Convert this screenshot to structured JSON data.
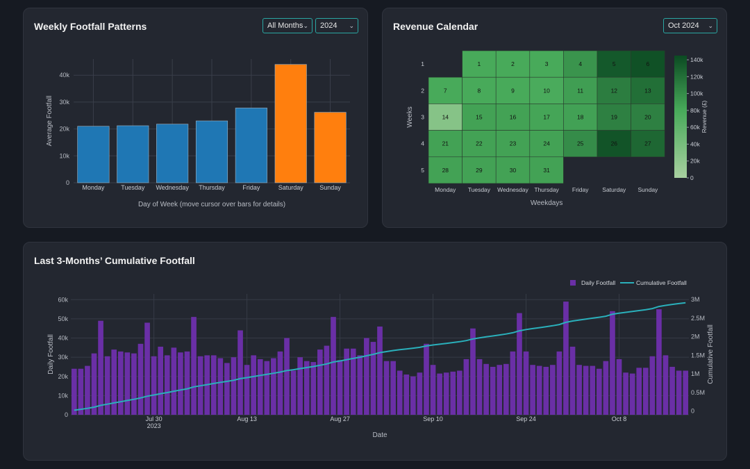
{
  "weekly": {
    "title": "Weekly Footfall Patterns",
    "month_select": "All Months",
    "year_select": "2024"
  },
  "calendar": {
    "title": "Revenue Calendar",
    "month_select": "Oct 2024"
  },
  "cumulative": {
    "title": "Last 3-Months’ Cumulative Footfall"
  },
  "icons": {
    "chevron": "chevron-down-icon"
  },
  "colors": {
    "weekday_bar": "#1f77b4",
    "weekend_bar": "#ff7f0e",
    "daily_bar": "#6a2fa6",
    "cumulative_line": "#2ab0bb",
    "select_border": "#2aa7a3",
    "heat_low": "#a8d0a0",
    "heat_high": "#0b4a22"
  },
  "chart_data": [
    {
      "type": "bar",
      "title": "Weekly Footfall Patterns",
      "categories": [
        "Monday",
        "Tuesday",
        "Wednesday",
        "Thursday",
        "Friday",
        "Saturday",
        "Sunday"
      ],
      "values": [
        21000,
        21200,
        21800,
        23000,
        27800,
        44000,
        26200
      ],
      "weekend": [
        false,
        false,
        false,
        false,
        false,
        true,
        true
      ],
      "xlabel": "Day of Week (move cursor over bars for details)",
      "ylabel": "Average Footfall",
      "ylim": [
        0,
        46000
      ],
      "yticks": [
        0,
        10000,
        20000,
        30000,
        40000
      ],
      "ytick_labels": [
        "0",
        "10k",
        "20k",
        "30k",
        "40k"
      ]
    },
    {
      "type": "heatmap",
      "title": "Revenue Calendar",
      "x_categories": [
        "Monday",
        "Tuesday",
        "Wednesday",
        "Thursday",
        "Friday",
        "Saturday",
        "Sunday"
      ],
      "y_categories": [
        "1",
        "2",
        "3",
        "4",
        "5"
      ],
      "xlabel": "Weekdays",
      "ylabel": "Weeks",
      "colorbar_title": "Revenue (£)",
      "colorbar_range": [
        0,
        145000
      ],
      "colorbar_ticks": [
        0,
        20000,
        40000,
        60000,
        80000,
        100000,
        120000,
        140000
      ],
      "colorbar_tick_labels": [
        "0",
        "20k",
        "40k",
        "60k",
        "80k",
        "100k",
        "120k",
        "140k"
      ],
      "cells": [
        {
          "week": 1,
          "dow": 1,
          "day": "1",
          "value": 80000
        },
        {
          "week": 1,
          "dow": 2,
          "day": "2",
          "value": 80000
        },
        {
          "week": 1,
          "dow": 3,
          "day": "3",
          "value": 80000
        },
        {
          "week": 1,
          "dow": 4,
          "day": "4",
          "value": 95000
        },
        {
          "week": 1,
          "dow": 5,
          "day": "5",
          "value": 135000
        },
        {
          "week": 1,
          "dow": 6,
          "day": "6",
          "value": 140000
        },
        {
          "week": 2,
          "dow": 0,
          "day": "7",
          "value": 80000
        },
        {
          "week": 2,
          "dow": 1,
          "day": "8",
          "value": 80000
        },
        {
          "week": 2,
          "dow": 2,
          "day": "9",
          "value": 80000
        },
        {
          "week": 2,
          "dow": 3,
          "day": "10",
          "value": 78000
        },
        {
          "week": 2,
          "dow": 4,
          "day": "11",
          "value": 88000
        },
        {
          "week": 2,
          "dow": 5,
          "day": "12",
          "value": 110000
        },
        {
          "week": 2,
          "dow": 6,
          "day": "13",
          "value": 120000
        },
        {
          "week": 3,
          "dow": 0,
          "day": "14",
          "value": 28000
        },
        {
          "week": 3,
          "dow": 1,
          "day": "15",
          "value": 85000
        },
        {
          "week": 3,
          "dow": 2,
          "day": "16",
          "value": 85000
        },
        {
          "week": 3,
          "dow": 3,
          "day": "17",
          "value": 83000
        },
        {
          "week": 3,
          "dow": 4,
          "day": "18",
          "value": 86000
        },
        {
          "week": 3,
          "dow": 5,
          "day": "19",
          "value": 108000
        },
        {
          "week": 3,
          "dow": 6,
          "day": "20",
          "value": 108000
        },
        {
          "week": 4,
          "dow": 0,
          "day": "21",
          "value": 85000
        },
        {
          "week": 4,
          "dow": 1,
          "day": "22",
          "value": 85000
        },
        {
          "week": 4,
          "dow": 2,
          "day": "23",
          "value": 85000
        },
        {
          "week": 4,
          "dow": 3,
          "day": "24",
          "value": 85000
        },
        {
          "week": 4,
          "dow": 4,
          "day": "25",
          "value": 100000
        },
        {
          "week": 4,
          "dow": 5,
          "day": "26",
          "value": 138000
        },
        {
          "week": 4,
          "dow": 6,
          "day": "27",
          "value": 125000
        },
        {
          "week": 5,
          "dow": 0,
          "day": "28",
          "value": 85000
        },
        {
          "week": 5,
          "dow": 1,
          "day": "29",
          "value": 85000
        },
        {
          "week": 5,
          "dow": 2,
          "day": "30",
          "value": 85000
        },
        {
          "week": 5,
          "dow": 3,
          "day": "31",
          "value": 85000
        }
      ]
    },
    {
      "type": "bar+line",
      "title": "Last 3-Months’ Cumulative Footfall",
      "xlabel": "Date",
      "ylabel": "Daily Footfall",
      "y2label": "Cumulative Footfall",
      "legend": [
        "Daily Footfall",
        "Cumulative Footfall"
      ],
      "legend_position": "top-right",
      "ylim": [
        0,
        63000
      ],
      "y2lim": [
        -100000,
        3150000
      ],
      "yticks": [
        0,
        10000,
        20000,
        30000,
        40000,
        50000,
        60000
      ],
      "ytick_labels": [
        "0",
        "10k",
        "20k",
        "30k",
        "40k",
        "50k",
        "60k"
      ],
      "y2ticks": [
        0,
        500000,
        1000000,
        1500000,
        2000000,
        2500000,
        3000000
      ],
      "y2tick_labels": [
        "0",
        "0.5M",
        "1M",
        "1.5M",
        "2M",
        "2.5M",
        "3M"
      ],
      "x_start": "2023-07-18",
      "xtick_index": [
        12,
        26,
        40,
        54,
        68,
        82
      ],
      "xtick_labels": [
        "Jul 30",
        "Aug 13",
        "Aug 27",
        "Sep 10",
        "Sep 24",
        "Oct 8"
      ],
      "xtick_year": "2023",
      "daily": [
        24000,
        24000,
        25500,
        32000,
        49000,
        30500,
        34000,
        33000,
        32500,
        32000,
        37000,
        48000,
        30500,
        35500,
        31000,
        35000,
        32500,
        33000,
        51000,
        30500,
        31000,
        31000,
        29500,
        27000,
        30000,
        44000,
        26000,
        31000,
        29000,
        28000,
        29500,
        33000,
        40000,
        23000,
        30000,
        28000,
        27500,
        34000,
        36000,
        51000,
        28500,
        34500,
        34500,
        31000,
        40000,
        38000,
        46000,
        28000,
        28000,
        23000,
        21000,
        20000,
        22000,
        37000,
        26000,
        21500,
        22000,
        22500,
        23000,
        29000,
        45000,
        29000,
        26500,
        25000,
        26000,
        26500,
        33000,
        53000,
        33000,
        26000,
        25500,
        25000,
        26000,
        33000,
        59000,
        35500,
        26000,
        25500,
        25500,
        24000,
        28000,
        54000,
        29000,
        22000,
        21500,
        24500,
        24500,
        30500,
        55000,
        31000,
        25000,
        23000,
        23000
      ],
      "cumulative": [
        24000,
        48000,
        73500,
        105500,
        154500,
        185000,
        219000,
        252000,
        284500,
        316500,
        353500,
        401500,
        432000,
        467500,
        498500,
        533500,
        566000,
        599000,
        650000,
        680500,
        711500,
        742500,
        772000,
        799000,
        829000,
        873000,
        899000,
        930000,
        959000,
        987000,
        1016500,
        1049500,
        1089500,
        1112500,
        1142500,
        1170500,
        1198000,
        1232000,
        1268000,
        1319000,
        1347500,
        1382000,
        1416500,
        1447500,
        1487500,
        1525500,
        1571500,
        1599500,
        1627500,
        1650500,
        1671500,
        1691500,
        1713500,
        1750500,
        1776500,
        1798000,
        1820000,
        1842500,
        1865500,
        1894500,
        1939500,
        1968500,
        1995000,
        2020000,
        2046000,
        2072500,
        2105500,
        2158500,
        2191500,
        2217500,
        2243000,
        2268000,
        2294000,
        2327000,
        2386000,
        2421500,
        2447500,
        2473000,
        2498500,
        2522500,
        2550500,
        2604500,
        2633500,
        2655500,
        2677000,
        2701500,
        2726000,
        2756500,
        2811500,
        2842500,
        2867500,
        2890500,
        2913500
      ]
    }
  ]
}
